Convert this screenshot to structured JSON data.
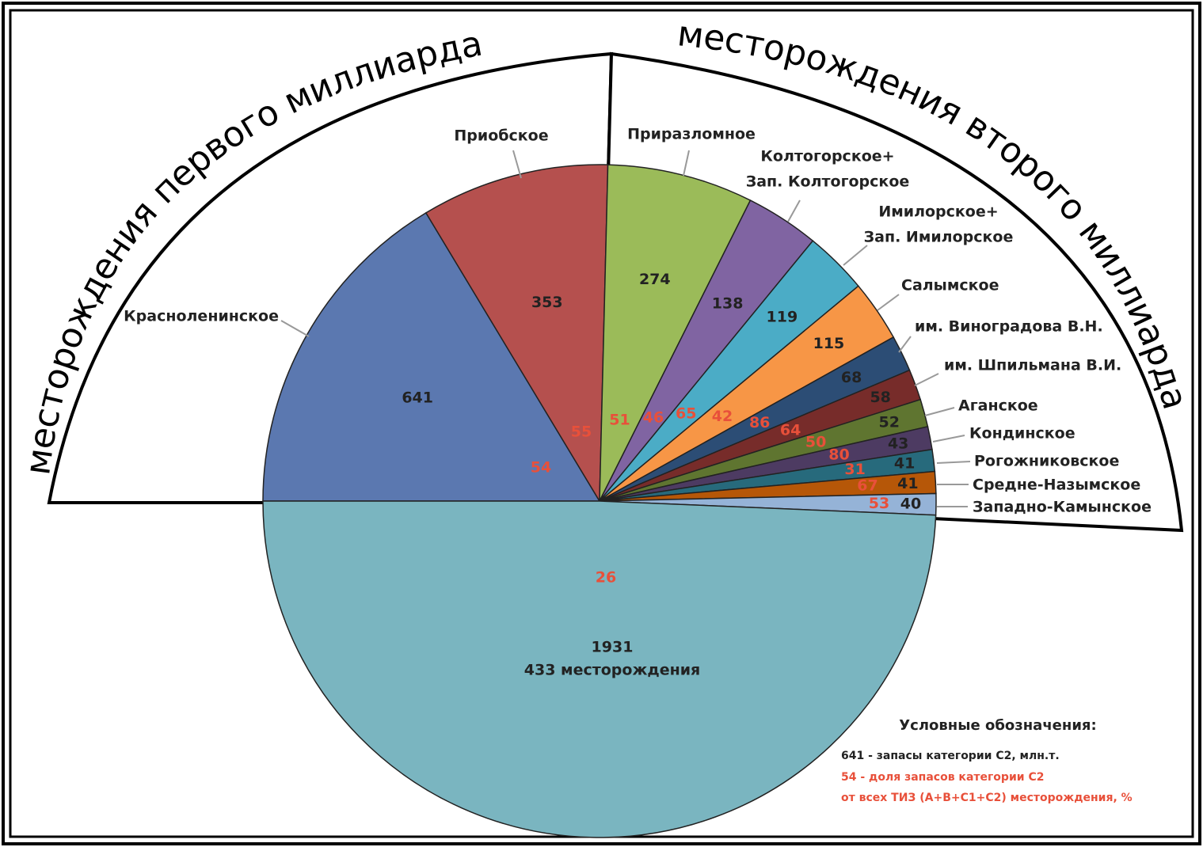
{
  "chart_data": {
    "type": "pie",
    "title_left": "месторождения первого миллиарда",
    "title_right": "месторождения второго миллиарда",
    "categories": [
      [
        "Красноленинское"
      ],
      [
        "Приобское"
      ],
      [
        "Приразломное"
      ],
      [
        "Колтогорское+",
        "Зап. Колтогорское"
      ],
      [
        "Имилорское+",
        "Зап. Имилорское"
      ],
      [
        "Салымское"
      ],
      [
        "им. Виноградова В.Н."
      ],
      [
        "им. Шпильмана В.И."
      ],
      [
        "Аганское"
      ],
      [
        "Кондинское"
      ],
      [
        "Рогожниковское"
      ],
      [
        "Средне-Назымское"
      ],
      [
        "Западно-Камынское"
      ],
      [
        "433 месторождения"
      ]
    ],
    "values": [
      641,
      353,
      274,
      138,
      119,
      115,
      68,
      58,
      52,
      43,
      41,
      41,
      40,
      1931
    ],
    "shares": [
      54,
      55,
      51,
      46,
      65,
      42,
      86,
      64,
      50,
      80,
      31,
      67,
      53,
      26
    ],
    "colors": [
      "#5b78b0",
      "#b5504e",
      "#9bbb59",
      "#8064a2",
      "#4bacc6",
      "#f79646",
      "#2c4d75",
      "#772c2a",
      "#5f7530",
      "#4d3b62",
      "#276a7c",
      "#b65708",
      "#95b3d7",
      "#7ab5c0"
    ],
    "legend": {
      "title": "Условные обозначения:",
      "lines": [
        "641 - запасы категории С2, млн.т.",
        "54 - доля запасов категории С2",
        "от всех ТИЗ (А+В+С1+С2) месторождения, %"
      ]
    }
  }
}
